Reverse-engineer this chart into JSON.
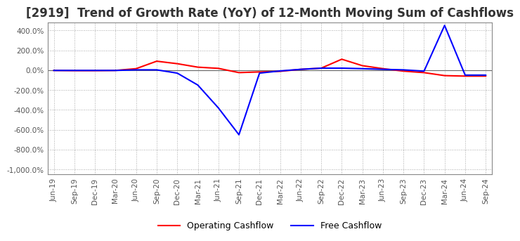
{
  "title": "[2919]  Trend of Growth Rate (YoY) of 12-Month Moving Sum of Cashflows",
  "title_fontsize": 12,
  "ylim": [
    -1050,
    480
  ],
  "yticks": [
    400,
    200,
    0,
    -200,
    -400,
    -600,
    -800,
    -1000
  ],
  "background_color": "#ffffff",
  "grid_color": "#aaaaaa",
  "legend_labels": [
    "Operating Cashflow",
    "Free Cashflow"
  ],
  "legend_colors": [
    "#ff0000",
    "#0000ff"
  ],
  "x_labels": [
    "Jun-19",
    "Sep-19",
    "Dec-19",
    "Mar-20",
    "Jun-20",
    "Sep-20",
    "Dec-20",
    "Mar-21",
    "Jun-21",
    "Sep-21",
    "Dec-21",
    "Mar-22",
    "Jun-22",
    "Sep-22",
    "Dec-22",
    "Mar-23",
    "Jun-23",
    "Sep-23",
    "Dec-23",
    "Mar-24",
    "Jun-24",
    "Sep-24"
  ],
  "operating_cashflow": [
    -3,
    -5,
    -5,
    -3,
    15,
    90,
    65,
    30,
    18,
    -25,
    -18,
    -12,
    8,
    20,
    110,
    45,
    15,
    -10,
    -25,
    -55,
    -60,
    -60
  ],
  "free_cashflow": [
    -3,
    -3,
    -3,
    -3,
    3,
    3,
    -30,
    -150,
    -380,
    -650,
    -30,
    -8,
    8,
    20,
    20,
    15,
    8,
    3,
    -10,
    450,
    -50,
    -50
  ]
}
